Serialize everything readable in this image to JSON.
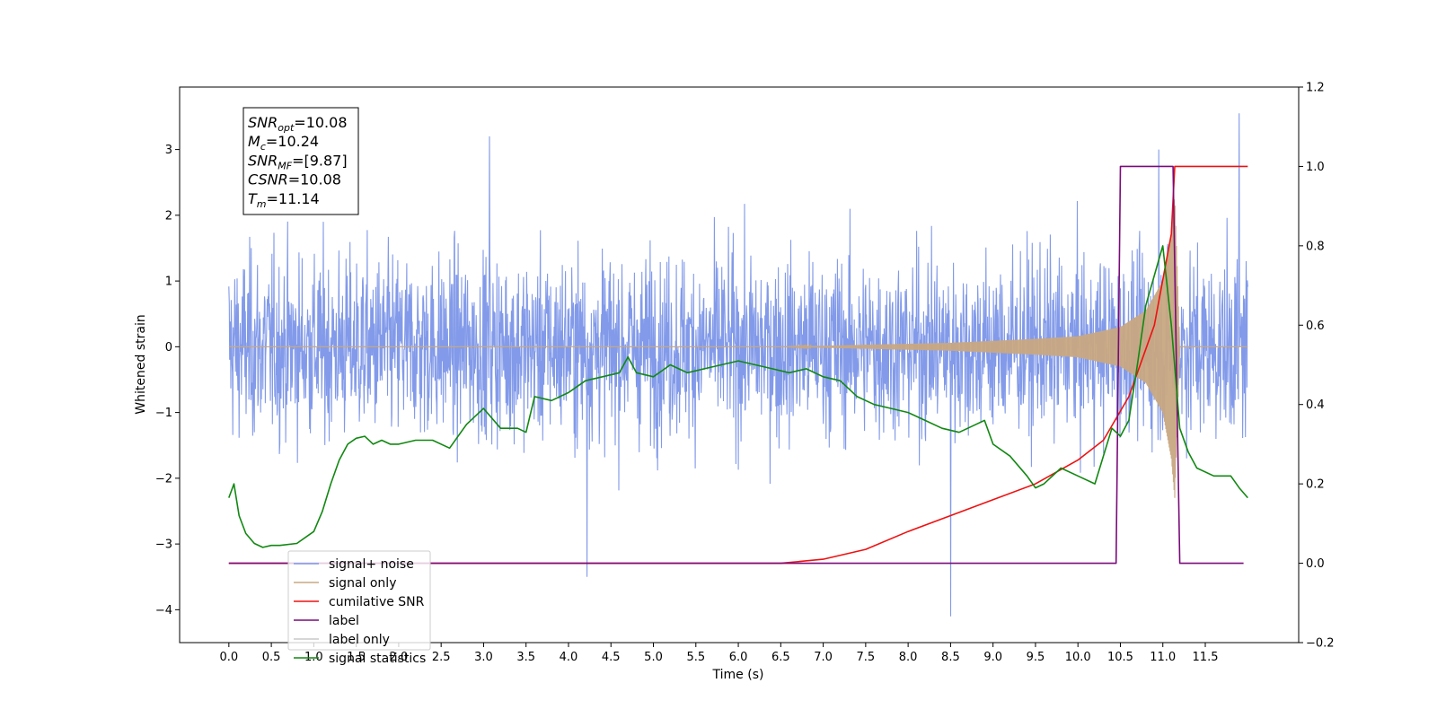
{
  "chart_data": {
    "type": "line",
    "xlabel": "Time (s)",
    "ylabel_left": "Whitened strain",
    "ylabel_right": "",
    "xlim": [
      -0.58,
      12.6
    ],
    "ylim_left": [
      -4.5,
      3.95
    ],
    "ylim_right": [
      -0.2,
      1.2
    ],
    "x_ticks": [
      "0.0",
      "0.5",
      "1.0",
      "1.5",
      "2.0",
      "2.5",
      "3.0",
      "3.5",
      "4.0",
      "4.5",
      "5.0",
      "5.5",
      "6.0",
      "6.5",
      "7.0",
      "7.5",
      "8.0",
      "8.5",
      "9.0",
      "9.5",
      "10.0",
      "10.5",
      "11.0",
      "11.5"
    ],
    "y_ticks_left": [
      "3",
      "2",
      "1",
      "0",
      "−1",
      "−2",
      "−3",
      "−4"
    ],
    "y_ticks_right": [
      "1.2",
      "1.0",
      "0.8",
      "0.6",
      "0.4",
      "0.2",
      "0.0",
      "−0.2"
    ],
    "grid": false,
    "legend_position": "lower-left",
    "info_box": {
      "lines": [
        {
          "sym": "SNR",
          "sub": "opt",
          "val": "=10.08"
        },
        {
          "sym": "M",
          "sub": "c",
          "val": "=10.24"
        },
        {
          "sym": "SNR",
          "sub": "MF",
          "val": "=[9.87]"
        },
        {
          "sym": "CSNR",
          "sub": "",
          "val": "=10.08"
        },
        {
          "sym": "T",
          "sub": "m",
          "val": "=11.14"
        }
      ]
    },
    "series": [
      {
        "name": "signal+ noise",
        "color": "#7b95e8",
        "axis": "left",
        "description_values": {
          "x_range": [
            0.0,
            12.0
          ],
          "amplitude_envelope": [
            -2.0,
            2.0
          ],
          "peaks": [
            [
              3.07,
              3.2
            ],
            [
              11.9,
              3.55
            ],
            [
              8.5,
              -4.1
            ],
            [
              4.22,
              -3.5
            ],
            [
              10.95,
              3.0
            ]
          ]
        }
      },
      {
        "name": "signal only",
        "color": "#c8a882",
        "axis": "left",
        "description_values": {
          "x_range": [
            0.0,
            12.0
          ],
          "envelope": {
            "x": [
              0.0,
              6.5,
              7.5,
              8.5,
              9.5,
              10.0,
              10.5,
              10.8,
              11.0,
              11.1,
              11.14,
              11.2,
              12.0
            ],
            "amp": [
              0.0,
              0.0,
              0.03,
              0.06,
              0.12,
              0.16,
              0.3,
              0.55,
              1.0,
              1.7,
              2.3,
              0.0,
              0.0
            ]
          }
        }
      },
      {
        "name": "cumilative SNR",
        "color": "#ee1111",
        "axis": "right",
        "x": [
          0.0,
          6.5,
          7.0,
          7.5,
          8.0,
          8.5,
          9.0,
          9.5,
          10.0,
          10.3,
          10.6,
          10.9,
          11.1,
          11.14,
          11.2,
          12.0
        ],
        "y": [
          0.0,
          0.0,
          0.01,
          0.035,
          0.08,
          0.12,
          0.16,
          0.2,
          0.26,
          0.31,
          0.42,
          0.6,
          0.83,
          1.0,
          1.0,
          1.0
        ]
      },
      {
        "name": "label",
        "color": "#7a0b7a",
        "axis": "right",
        "x": [
          0.0,
          10.45,
          10.5,
          11.12,
          11.2,
          11.95
        ],
        "y": [
          0.0,
          0.0,
          1.0,
          1.0,
          0.0,
          0.0
        ]
      },
      {
        "name": "label only",
        "color": "#c8c8c8",
        "axis": "right",
        "x": [],
        "y": []
      },
      {
        "name": "signal statistics",
        "color": "#118811",
        "axis": "right",
        "x": [
          0.0,
          0.06,
          0.12,
          0.2,
          0.3,
          0.4,
          0.5,
          0.6,
          0.8,
          1.0,
          1.1,
          1.2,
          1.3,
          1.4,
          1.5,
          1.6,
          1.7,
          1.8,
          1.9,
          2.0,
          2.2,
          2.4,
          2.6,
          2.8,
          3.0,
          3.2,
          3.4,
          3.5,
          3.6,
          3.8,
          4.0,
          4.2,
          4.4,
          4.6,
          4.7,
          4.8,
          5.0,
          5.2,
          5.4,
          5.6,
          5.8,
          6.0,
          6.2,
          6.4,
          6.6,
          6.8,
          7.0,
          7.2,
          7.4,
          7.6,
          7.8,
          8.0,
          8.2,
          8.4,
          8.6,
          8.8,
          8.9,
          9.0,
          9.2,
          9.4,
          9.5,
          9.6,
          9.8,
          10.0,
          10.2,
          10.4,
          10.5,
          10.6,
          10.7,
          10.8,
          11.0,
          11.1,
          11.2,
          11.3,
          11.4,
          11.6,
          11.8,
          11.9,
          12.0
        ],
        "y": [
          0.165,
          0.2,
          0.12,
          0.075,
          0.05,
          0.04,
          0.045,
          0.045,
          0.05,
          0.08,
          0.13,
          0.2,
          0.26,
          0.3,
          0.315,
          0.32,
          0.3,
          0.31,
          0.3,
          0.3,
          0.31,
          0.31,
          0.29,
          0.35,
          0.39,
          0.34,
          0.34,
          0.33,
          0.42,
          0.41,
          0.43,
          0.46,
          0.47,
          0.48,
          0.52,
          0.48,
          0.47,
          0.5,
          0.48,
          0.49,
          0.5,
          0.51,
          0.5,
          0.49,
          0.48,
          0.49,
          0.47,
          0.46,
          0.42,
          0.4,
          0.39,
          0.38,
          0.36,
          0.34,
          0.33,
          0.35,
          0.36,
          0.3,
          0.27,
          0.22,
          0.19,
          0.2,
          0.24,
          0.22,
          0.2,
          0.34,
          0.32,
          0.36,
          0.5,
          0.65,
          0.8,
          0.6,
          0.34,
          0.28,
          0.24,
          0.22,
          0.22,
          0.19,
          0.165
        ]
      }
    ]
  }
}
